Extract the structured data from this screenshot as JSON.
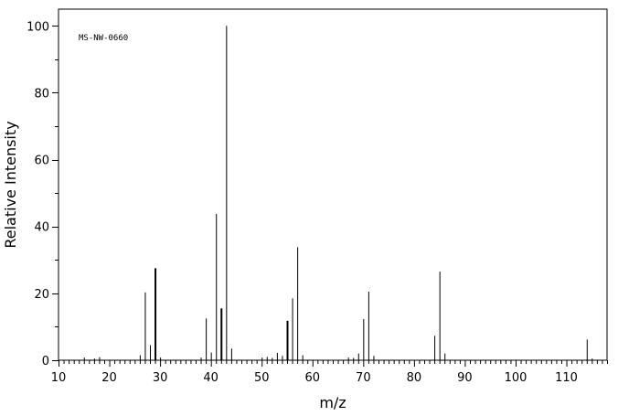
{
  "chart_data": {
    "type": "bar",
    "annotation": "MS-NW-0660",
    "xlabel": "m/z",
    "ylabel": "Relative Intensity",
    "xlim": [
      10,
      118
    ],
    "ylim": [
      0,
      105
    ],
    "x_ticks": [
      10,
      20,
      30,
      40,
      50,
      60,
      70,
      80,
      90,
      100,
      110
    ],
    "y_ticks": [
      0,
      20,
      40,
      60,
      80,
      100
    ],
    "peaks": [
      {
        "mz": 15,
        "intensity": 0.8
      },
      {
        "mz": 17,
        "intensity": 0.5
      },
      {
        "mz": 18,
        "intensity": 0.9
      },
      {
        "mz": 26,
        "intensity": 1.5
      },
      {
        "mz": 27,
        "intensity": 20.3
      },
      {
        "mz": 28,
        "intensity": 4.5
      },
      {
        "mz": 29,
        "intensity": 27.5
      },
      {
        "mz": 30,
        "intensity": 0.8
      },
      {
        "mz": 38,
        "intensity": 0.8
      },
      {
        "mz": 39,
        "intensity": 12.5
      },
      {
        "mz": 40,
        "intensity": 2.3
      },
      {
        "mz": 41,
        "intensity": 43.8
      },
      {
        "mz": 42,
        "intensity": 15.5
      },
      {
        "mz": 43,
        "intensity": 100
      },
      {
        "mz": 44,
        "intensity": 3.5
      },
      {
        "mz": 50,
        "intensity": 0.8
      },
      {
        "mz": 51,
        "intensity": 1.0
      },
      {
        "mz": 52,
        "intensity": 0.7
      },
      {
        "mz": 53,
        "intensity": 2.2
      },
      {
        "mz": 54,
        "intensity": 1.3
      },
      {
        "mz": 55,
        "intensity": 11.8
      },
      {
        "mz": 56,
        "intensity": 18.5
      },
      {
        "mz": 57,
        "intensity": 33.8
      },
      {
        "mz": 58,
        "intensity": 1.5
      },
      {
        "mz": 67,
        "intensity": 0.8
      },
      {
        "mz": 68,
        "intensity": 0.7
      },
      {
        "mz": 69,
        "intensity": 2.0
      },
      {
        "mz": 70,
        "intensity": 12.3
      },
      {
        "mz": 71,
        "intensity": 20.5
      },
      {
        "mz": 72,
        "intensity": 1.3
      },
      {
        "mz": 84,
        "intensity": 7.3
      },
      {
        "mz": 85,
        "intensity": 26.5
      },
      {
        "mz": 86,
        "intensity": 2.0
      },
      {
        "mz": 114,
        "intensity": 6.2
      },
      {
        "mz": 115,
        "intensity": 0.5
      }
    ]
  }
}
